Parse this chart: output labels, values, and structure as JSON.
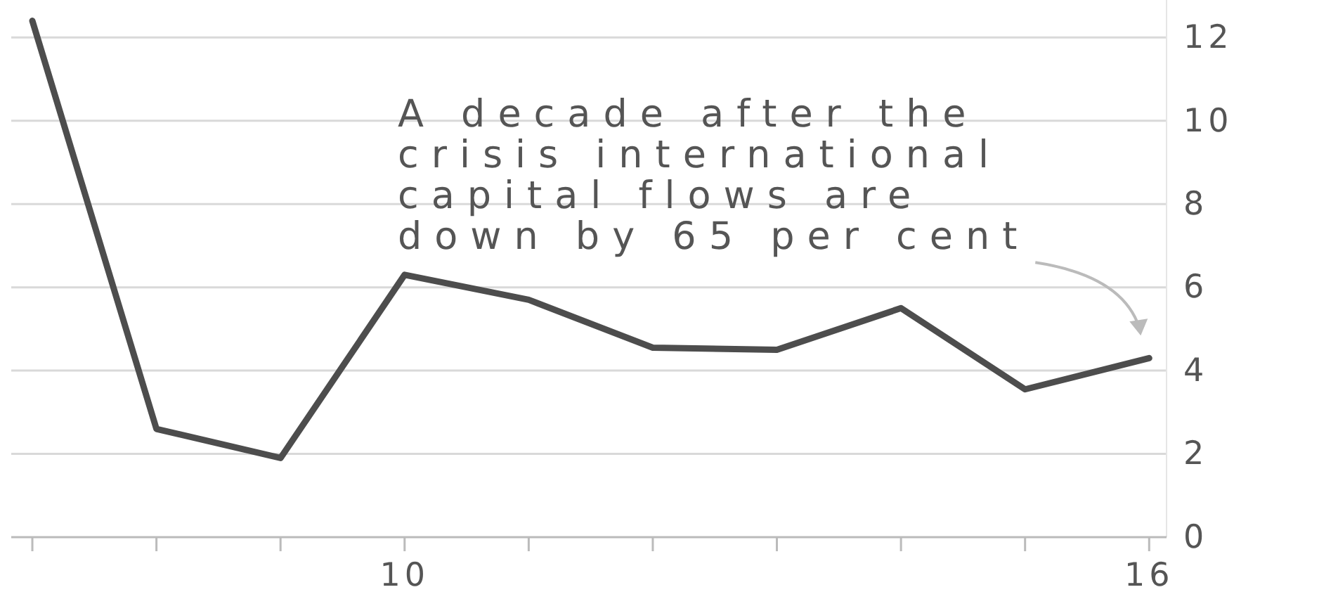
{
  "chart_data": {
    "type": "line",
    "x": [
      2007,
      2008,
      2009,
      2010,
      2011,
      2012,
      2013,
      2014,
      2015,
      2016
    ],
    "series": [
      {
        "color": "#4d4d4d",
        "values": [
          12.4,
          2.6,
          1.9,
          6.3,
          5.7,
          4.55,
          4.5,
          5.5,
          3.55,
          4.3
        ]
      }
    ],
    "xlim": [
      2006.83,
      2016.14
    ],
    "xticks": [
      {
        "value": 2007,
        "label": null
      },
      {
        "value": 2008,
        "label": null
      },
      {
        "value": 2009,
        "label": null
      },
      {
        "value": 2010,
        "label": "10"
      },
      {
        "value": 2011,
        "label": null
      },
      {
        "value": 2012,
        "label": null
      },
      {
        "value": 2013,
        "label": null
      },
      {
        "value": 2014,
        "label": null
      },
      {
        "value": 2015,
        "label": null
      },
      {
        "value": 2016,
        "label": "16"
      }
    ],
    "ylim": [
      0,
      12.9
    ],
    "yticks": [
      0,
      2,
      4,
      6,
      8,
      10,
      12
    ],
    "grid": "y",
    "marker": "none",
    "line_style": "solid",
    "annotations": [
      "A decade after the crisis international capital flows are down by 65 per cent"
    ]
  }
}
